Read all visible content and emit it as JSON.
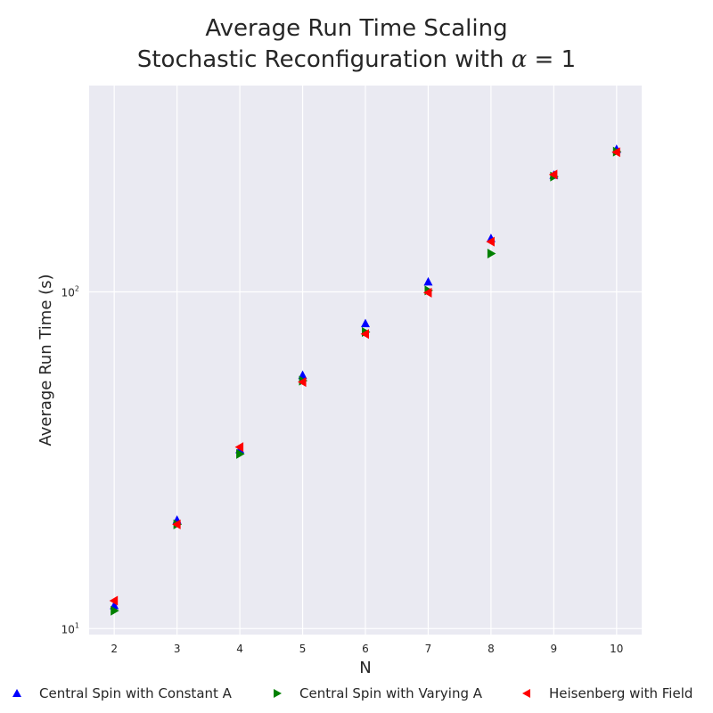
{
  "chart_data": {
    "type": "scatter",
    "title_line1": "Average Run Time Scaling",
    "title_line2_prefix": "Stochastic Reconfiguration with ",
    "title_line2_symbol": "α",
    "title_line2_suffix": " = 1",
    "xlabel": "N",
    "ylabel": "Average Run Time (s)",
    "x_ticks": [
      2,
      3,
      4,
      5,
      6,
      7,
      8,
      9,
      10
    ],
    "y_scale": "log",
    "y_ticks": [
      {
        "value": 10,
        "base": "10",
        "exp": "1"
      },
      {
        "value": 100,
        "base": "10",
        "exp": "2"
      }
    ],
    "xlim": [
      1.6,
      10.4
    ],
    "ylim": [
      9.6,
      410
    ],
    "grid": true,
    "legend_position": "bottom",
    "series": [
      {
        "name": "Central Spin with Constant A",
        "marker": "triangle-up",
        "color": "#0000ff",
        "x": [
          2,
          3,
          4,
          5,
          6,
          7,
          8,
          9,
          10
        ],
        "y": [
          11.7,
          21.0,
          34.0,
          56.5,
          80.5,
          107.0,
          144.0,
          222.0,
          265.0
        ]
      },
      {
        "name": "Central Spin with Varying A",
        "marker": "triangle-right",
        "color": "#008000",
        "x": [
          2,
          3,
          4,
          5,
          6,
          7,
          8,
          9,
          10
        ],
        "y": [
          11.3,
          20.4,
          33.0,
          54.5,
          76.0,
          101.0,
          130.0,
          220.0,
          261.0
        ]
      },
      {
        "name": "Heisenberg with Field",
        "marker": "triangle-left",
        "color": "#ff0000",
        "x": [
          2,
          3,
          4,
          5,
          6,
          7,
          8,
          9,
          10
        ],
        "y": [
          12.1,
          20.4,
          34.6,
          54.0,
          75.0,
          99.5,
          141.0,
          223.0,
          260.0
        ]
      }
    ]
  }
}
